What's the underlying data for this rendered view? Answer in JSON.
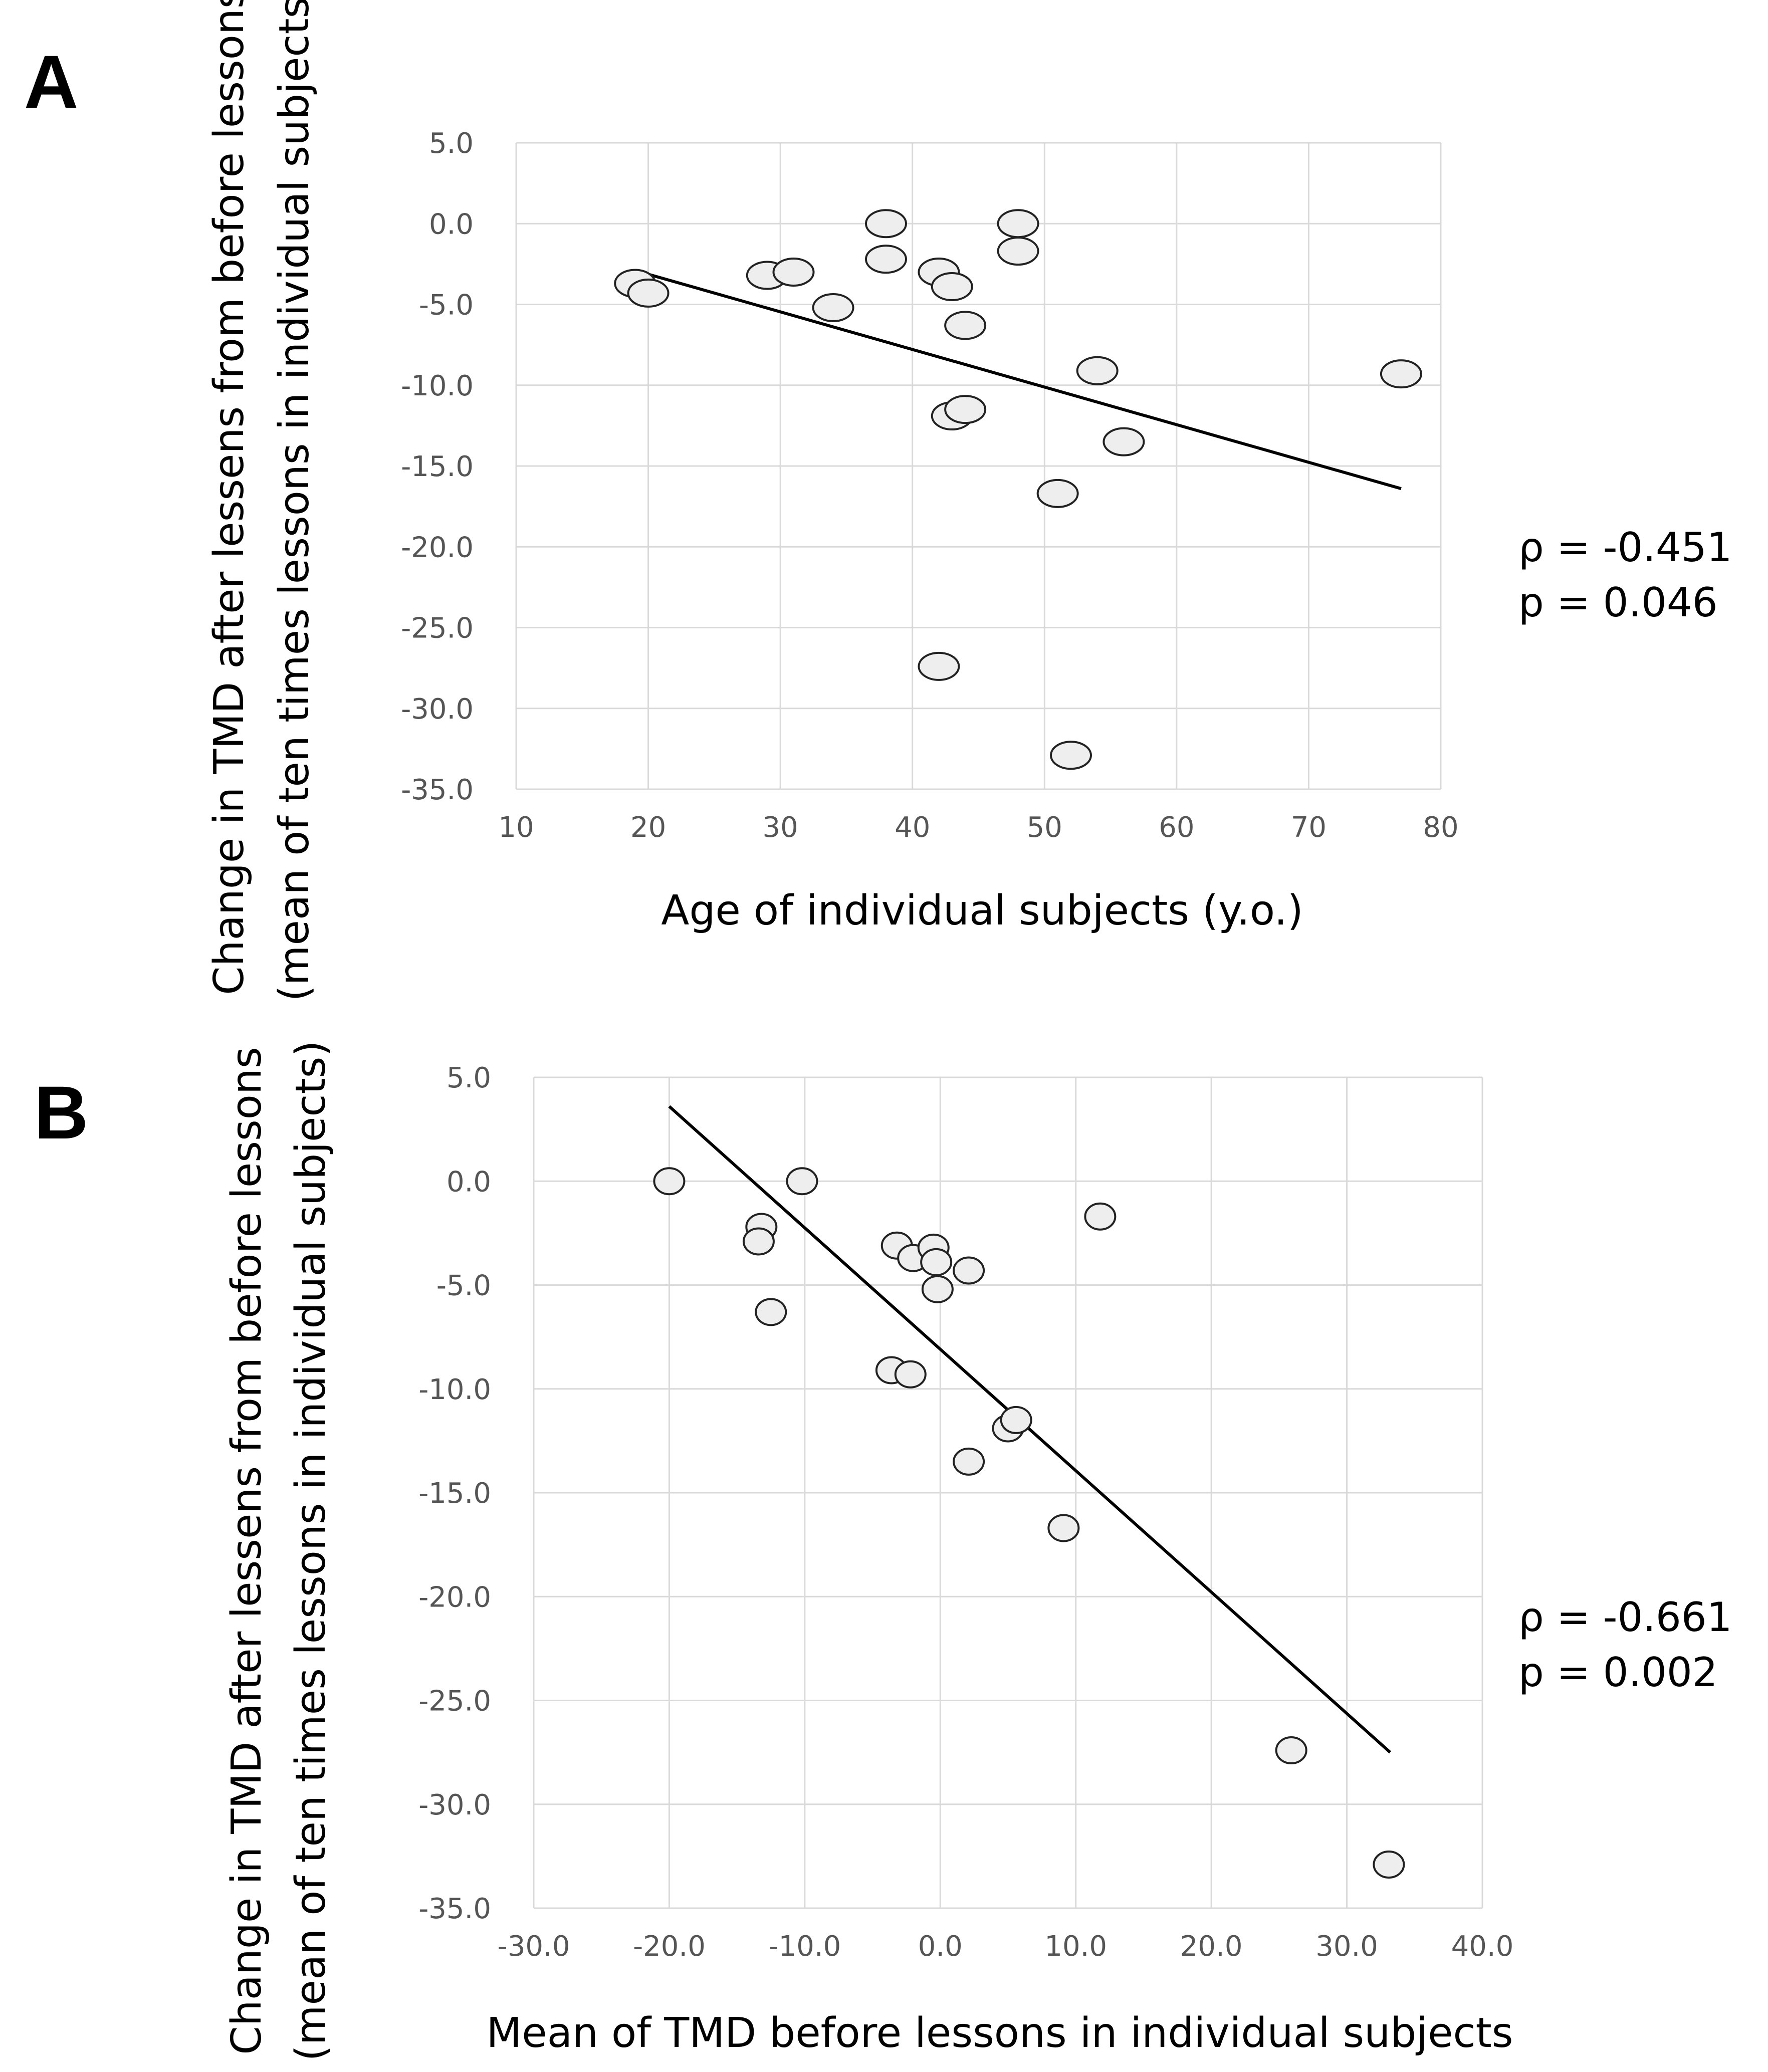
{
  "chart_data": [
    {
      "type": "scatter",
      "panel": "A",
      "xlabel": "Age of individual subjects (y.o.)",
      "ylabel_line1": "Change in TMD after lessens from before lessons",
      "ylabel_line2": "(mean of ten times lessons in individual subjects)",
      "xlim": [
        10,
        80
      ],
      "ylim": [
        -35,
        5
      ],
      "x_ticks": [
        "10",
        "20",
        "30",
        "40",
        "50",
        "60",
        "70",
        "80"
      ],
      "y_ticks": [
        "5.0",
        "0.0",
        "-5.0",
        "-10.0",
        "-15.0",
        "-20.0",
        "-25.0",
        "-30.0",
        "-35.0"
      ],
      "x_tick_values": [
        10,
        20,
        30,
        40,
        50,
        60,
        70,
        80
      ],
      "y_tick_values": [
        5,
        0,
        -5,
        -10,
        -15,
        -20,
        -25,
        -30,
        -35
      ],
      "points": [
        {
          "x": 19,
          "y": -3.7
        },
        {
          "x": 20,
          "y": -4.3
        },
        {
          "x": 29,
          "y": -3.2
        },
        {
          "x": 31,
          "y": -3.0
        },
        {
          "x": 34,
          "y": -5.2
        },
        {
          "x": 38,
          "y": 0.0
        },
        {
          "x": 38,
          "y": -2.2
        },
        {
          "x": 42,
          "y": -3.0
        },
        {
          "x": 43,
          "y": -3.9
        },
        {
          "x": 44,
          "y": -6.3
        },
        {
          "x": 48,
          "y": 0.0
        },
        {
          "x": 48,
          "y": -1.7
        },
        {
          "x": 43,
          "y": -11.9
        },
        {
          "x": 44,
          "y": -11.5
        },
        {
          "x": 54,
          "y": -9.1
        },
        {
          "x": 56,
          "y": -13.5
        },
        {
          "x": 51,
          "y": -16.7
        },
        {
          "x": 77,
          "y": -9.3
        },
        {
          "x": 42,
          "y": -27.4
        },
        {
          "x": 52,
          "y": -32.9
        }
      ],
      "trendline": {
        "x": [
          19,
          77
        ],
        "y": [
          -2.9,
          -16.4
        ]
      },
      "stats": {
        "rho": "ρ = -0.451",
        "p": "p = 0.046"
      }
    },
    {
      "type": "scatter",
      "panel": "B",
      "xlabel": "Mean of TMD before lessons in individual subjects",
      "ylabel_line1": "Change in TMD after lessens from before lessons",
      "ylabel_line2": "(mean of ten times lessons in individual subjects)",
      "xlim": [
        -30,
        40
      ],
      "ylim": [
        -35,
        5
      ],
      "x_ticks": [
        "-30.0",
        "-20.0",
        "-10.0",
        "0.0",
        "10.0",
        "20.0",
        "30.0",
        "40.0"
      ],
      "y_ticks": [
        "5.0",
        "0.0",
        "-5.0",
        "-10.0",
        "-15.0",
        "-20.0",
        "-25.0",
        "-30.0",
        "-35.0"
      ],
      "x_tick_values": [
        -30,
        -20,
        -10,
        0,
        10,
        20,
        30,
        40
      ],
      "y_tick_values": [
        5,
        0,
        -5,
        -10,
        -15,
        -20,
        -25,
        -30,
        -35
      ],
      "points": [
        {
          "x": -20,
          "y": 0.0
        },
        {
          "x": -10.2,
          "y": 0.0
        },
        {
          "x": -13.2,
          "y": -2.2
        },
        {
          "x": -13.4,
          "y": -2.9
        },
        {
          "x": -12.5,
          "y": -6.3
        },
        {
          "x": -3.2,
          "y": -3.1
        },
        {
          "x": -2.0,
          "y": -3.7
        },
        {
          "x": -0.5,
          "y": -3.2
        },
        {
          "x": -0.3,
          "y": -3.9
        },
        {
          "x": -0.2,
          "y": -5.2
        },
        {
          "x": 2.1,
          "y": -4.3
        },
        {
          "x": 11.8,
          "y": -1.7
        },
        {
          "x": -3.6,
          "y": -9.1
        },
        {
          "x": -2.2,
          "y": -9.3
        },
        {
          "x": 5.0,
          "y": -11.9
        },
        {
          "x": 5.6,
          "y": -11.5
        },
        {
          "x": 2.1,
          "y": -13.5
        },
        {
          "x": 9.1,
          "y": -16.7
        },
        {
          "x": 25.9,
          "y": -27.4
        },
        {
          "x": 33.1,
          "y": -32.9
        }
      ],
      "trendline": {
        "x": [
          -20,
          33.2
        ],
        "y": [
          3.6,
          -27.5
        ]
      },
      "stats": {
        "rho": "ρ = -0.661",
        "p": "p = 0.002"
      }
    }
  ]
}
